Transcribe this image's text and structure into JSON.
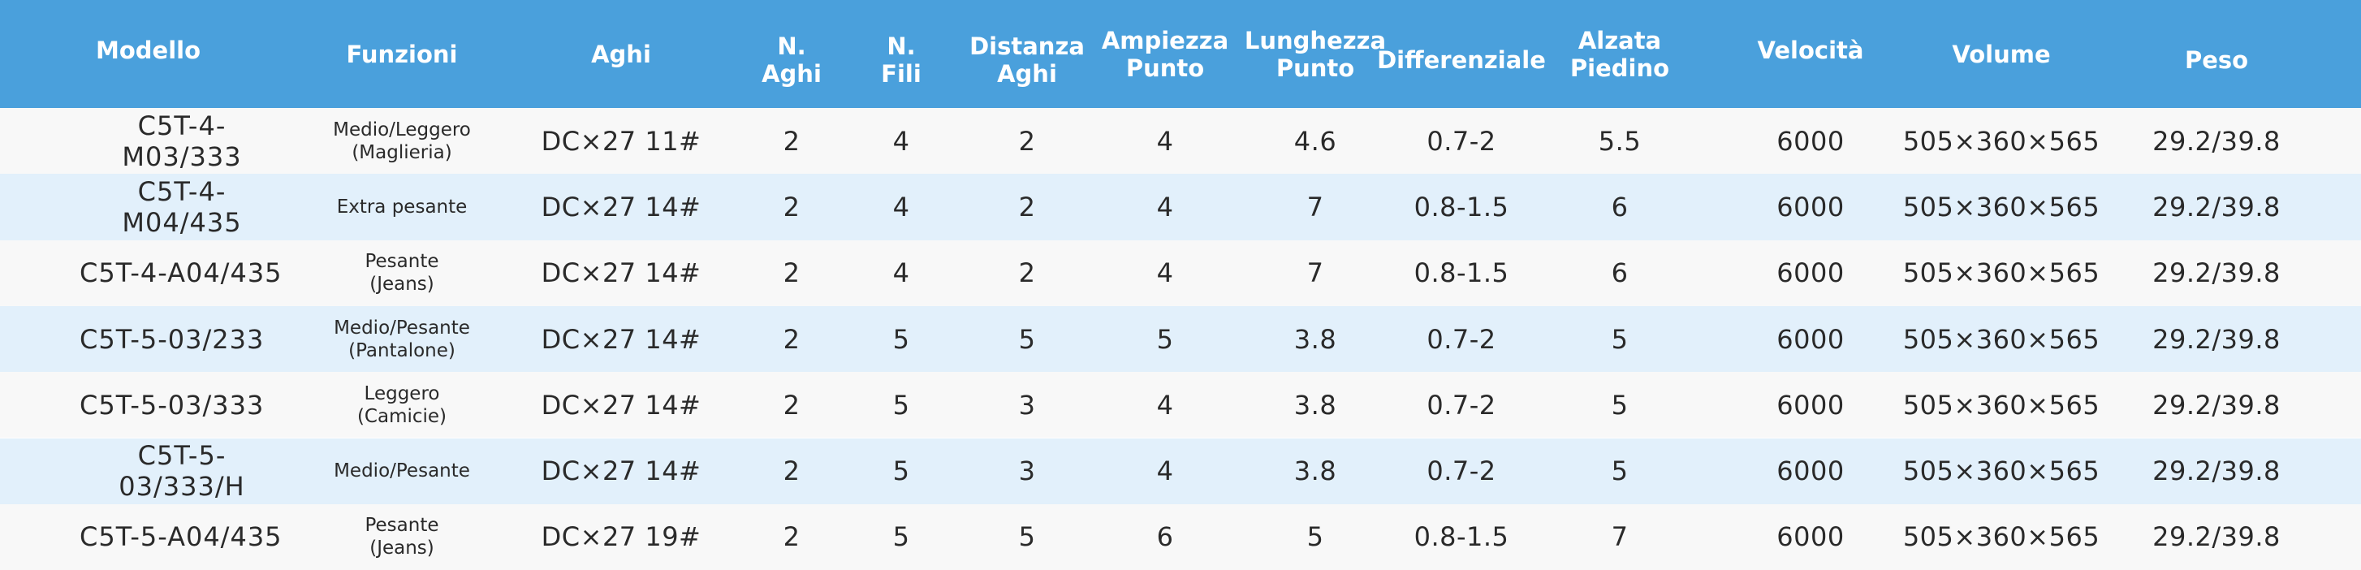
{
  "colors": {
    "header_bg": "#4aa0dc",
    "row_light": "#f8f8f8",
    "row_blue": "#e2f0fb",
    "header_text": "#ffffff",
    "cell_text": "#2a2a2a"
  },
  "headers": {
    "modello": "Modello",
    "funzioni": "Funzioni",
    "aghi": "Aghi",
    "n_aghi": "N.\nAghi",
    "n_fili": "N.\nFili",
    "distanza_aghi": "Distanza\nAghi",
    "ampiezza_punto": "Ampiezza\nPunto",
    "lunghezza_punto": "Lunghezza\nPunto",
    "differenziale": "Differenziale",
    "alzata_piedino": "Alzata\nPiedino",
    "velocita": "Velocità",
    "volume": "Volume",
    "peso": "Peso"
  },
  "rows": [
    {
      "modello": "C5T-4-M03/333",
      "funzioni": "Medio/Leggero\n(Maglieria)",
      "aghi": "DC×27 11#",
      "n_aghi": "2",
      "n_fili": "4",
      "distanza_aghi": "2",
      "ampiezza_punto": "4",
      "lunghezza_punto": "4.6",
      "differenziale": "0.7-2",
      "alzata_piedino": "5.5",
      "velocita": "6000",
      "volume": "505×360×565",
      "peso": "29.2/39.8"
    },
    {
      "modello": "C5T-4-M04/435",
      "funzioni": "Extra pesante",
      "aghi": "DC×27 14#",
      "n_aghi": "2",
      "n_fili": "4",
      "distanza_aghi": "2",
      "ampiezza_punto": "4",
      "lunghezza_punto": "7",
      "differenziale": "0.8-1.5",
      "alzata_piedino": "6",
      "velocita": "6000",
      "volume": "505×360×565",
      "peso": "29.2/39.8"
    },
    {
      "modello": "C5T-4-A04/435",
      "funzioni": "Pesante\n(Jeans)",
      "aghi": "DC×27 14#",
      "n_aghi": "2",
      "n_fili": "4",
      "distanza_aghi": "2",
      "ampiezza_punto": "4",
      "lunghezza_punto": "7",
      "differenziale": "0.8-1.5",
      "alzata_piedino": "6",
      "velocita": "6000",
      "volume": "505×360×565",
      "peso": "29.2/39.8"
    },
    {
      "modello": "C5T-5-03/233",
      "funzioni": "Medio/Pesante\n(Pantalone)",
      "aghi": "DC×27 14#",
      "n_aghi": "2",
      "n_fili": "5",
      "distanza_aghi": "5",
      "ampiezza_punto": "5",
      "lunghezza_punto": "3.8",
      "differenziale": "0.7-2",
      "alzata_piedino": "5",
      "velocita": "6000",
      "volume": "505×360×565",
      "peso": "29.2/39.8"
    },
    {
      "modello": "C5T-5-03/333",
      "funzioni": "Leggero\n(Camicie)",
      "aghi": "DC×27 14#",
      "n_aghi": "2",
      "n_fili": "5",
      "distanza_aghi": "3",
      "ampiezza_punto": "4",
      "lunghezza_punto": "3.8",
      "differenziale": "0.7-2",
      "alzata_piedino": "5",
      "velocita": "6000",
      "volume": "505×360×565",
      "peso": "29.2/39.8"
    },
    {
      "modello": "C5T-5-03/333/H",
      "funzioni": "Medio/Pesante",
      "aghi": "DC×27 14#",
      "n_aghi": "2",
      "n_fili": "5",
      "distanza_aghi": "3",
      "ampiezza_punto": "4",
      "lunghezza_punto": "3.8",
      "differenziale": "0.7-2",
      "alzata_piedino": "5",
      "velocita": "6000",
      "volume": "505×360×565",
      "peso": "29.2/39.8"
    },
    {
      "modello": "C5T-5-A04/435",
      "funzioni": "Pesante\n(Jeans)",
      "aghi": "DC×27 19#",
      "n_aghi": "2",
      "n_fili": "5",
      "distanza_aghi": "5",
      "ampiezza_punto": "6",
      "lunghezza_punto": "5",
      "differenziale": "0.8-1.5",
      "alzata_piedino": "7",
      "velocita": "6000",
      "volume": "505×360×565",
      "peso": "29.2/39.8"
    }
  ]
}
